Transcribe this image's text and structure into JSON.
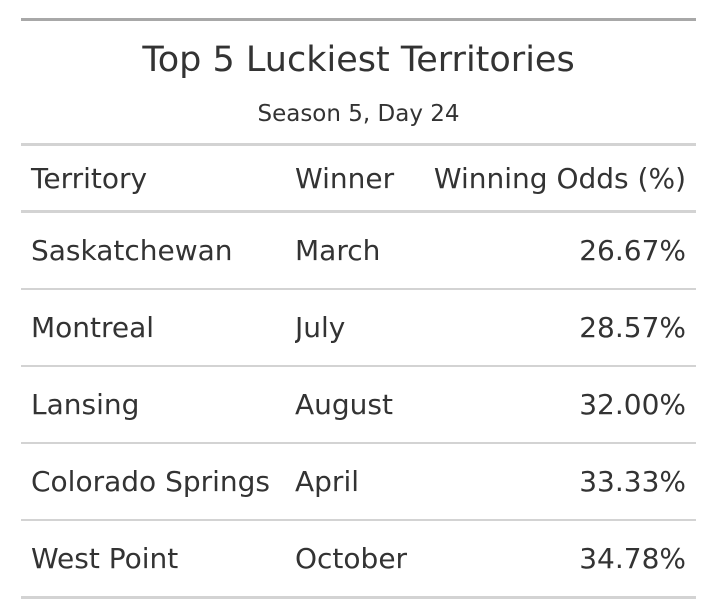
{
  "chart_data": {
    "type": "table",
    "title": "Top 5 Luckiest Territories",
    "subtitle": "Season 5, Day 24",
    "columns": [
      "Territory",
      "Winner",
      "Winning Odds (%)"
    ],
    "rows": [
      [
        "Saskatchewan",
        "March",
        "26.67%"
      ],
      [
        "Montreal",
        "July",
        "28.57%"
      ],
      [
        "Lansing",
        "August",
        "32.00%"
      ],
      [
        "Colorado Springs",
        "April",
        "33.33%"
      ],
      [
        "West Point",
        "October",
        "34.78%"
      ]
    ]
  }
}
